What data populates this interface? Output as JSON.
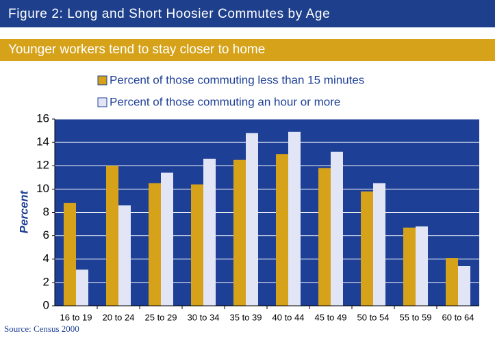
{
  "chart_data": {
    "type": "bar",
    "title": "Figure 2: Long and Short Hoosier Commutes by Age",
    "subtitle": "Younger workers tend to stay closer to home",
    "ylabel": "Percent",
    "source": "Source: Census 2000",
    "categories": [
      "16 to 19",
      "20 to 24",
      "25 to 29",
      "30 to 34",
      "35 to 39",
      "40 to 44",
      "45 to 49",
      "50 to 54",
      "55 to 59",
      "60 to 64"
    ],
    "series": [
      {
        "name": "Percent of those commuting less than 15 minutes",
        "color": "#d6a21a",
        "values": [
          8.8,
          12.0,
          10.5,
          10.4,
          12.5,
          13.0,
          11.8,
          9.8,
          6.7,
          4.1
        ]
      },
      {
        "name": "Percent of those commuting an hour or more",
        "color": "#e2e5f6",
        "values": [
          3.1,
          8.6,
          11.4,
          12.6,
          14.8,
          14.9,
          13.2,
          10.5,
          6.8,
          3.4
        ]
      }
    ],
    "ylim": [
      0,
      16
    ],
    "yticks": [
      0,
      2,
      4,
      6,
      8,
      10,
      12,
      14,
      16
    ],
    "grid": true
  }
}
